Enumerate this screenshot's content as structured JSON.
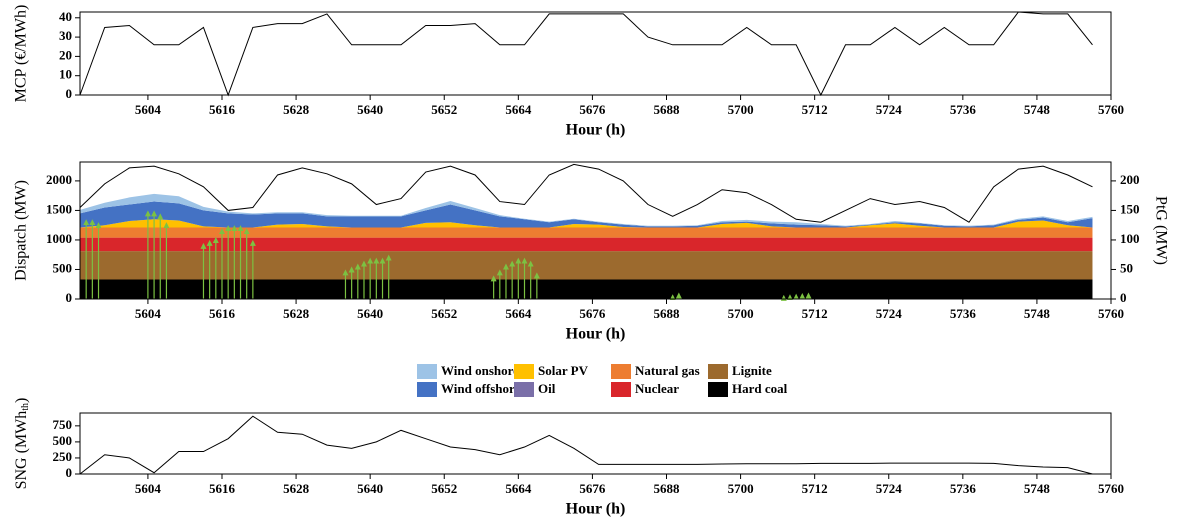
{
  "chart_data": [
    {
      "type": "line",
      "x_label": "Hour (h)",
      "y_label": "MCP (€/MWh)",
      "xlim": [
        5593,
        5760
      ],
      "xticks": [
        5604,
        5616,
        5628,
        5640,
        5652,
        5664,
        5676,
        5688,
        5700,
        5712,
        5724,
        5736,
        5748,
        5760
      ],
      "ylim": [
        0,
        43
      ],
      "yticks": [
        0,
        10,
        20,
        30,
        40
      ],
      "x": [
        5593,
        5597,
        5601,
        5605,
        5609,
        5613,
        5617,
        5621,
        5625,
        5629,
        5633,
        5637,
        5641,
        5645,
        5649,
        5653,
        5657,
        5661,
        5665,
        5669,
        5673,
        5677,
        5681,
        5685,
        5689,
        5693,
        5697,
        5701,
        5705,
        5709,
        5713,
        5717,
        5721,
        5725,
        5729,
        5733,
        5737,
        5741,
        5745,
        5749,
        5753,
        5757
      ],
      "series": [
        {
          "color": "#000000",
          "values": [
            0,
            35,
            36,
            26,
            26,
            35,
            0,
            35,
            37,
            37,
            42,
            26,
            26,
            26,
            36,
            36,
            37,
            26,
            26,
            42,
            42,
            42,
            42,
            30,
            26,
            26,
            26,
            35,
            26,
            26,
            0,
            26,
            26,
            35,
            26,
            35,
            26,
            26,
            43,
            42,
            42,
            26
          ]
        }
      ]
    },
    {
      "type": "area",
      "x_label": "Hour (h)",
      "y_label": "Dispatch (MW)",
      "y2_label": "PtG (MW)",
      "xlim": [
        5593,
        5760
      ],
      "xticks": [
        5604,
        5616,
        5628,
        5640,
        5652,
        5664,
        5676,
        5688,
        5700,
        5712,
        5724,
        5736,
        5748,
        5760
      ],
      "ylim": [
        0,
        2320
      ],
      "yticks": [
        0,
        500,
        1000,
        1500,
        2000
      ],
      "y2lim": [
        0,
        232
      ],
      "y2ticks": [
        0,
        50,
        100,
        150,
        200
      ],
      "x": [
        5593,
        5597,
        5601,
        5605,
        5609,
        5613,
        5617,
        5621,
        5625,
        5629,
        5633,
        5637,
        5641,
        5645,
        5649,
        5653,
        5657,
        5661,
        5665,
        5669,
        5673,
        5677,
        5681,
        5685,
        5689,
        5693,
        5697,
        5701,
        5705,
        5709,
        5713,
        5717,
        5721,
        5725,
        5729,
        5733,
        5737,
        5741,
        5745,
        5749,
        5753,
        5757
      ],
      "series": [
        {
          "name": "Wind onshore",
          "color": "#9dc3e6",
          "values": [
            60,
            80,
            120,
            130,
            120,
            60,
            30,
            20,
            20,
            20,
            20,
            10,
            10,
            10,
            40,
            60,
            40,
            20,
            10,
            10,
            10,
            10,
            10,
            10,
            10,
            10,
            20,
            30,
            30,
            40,
            20,
            10,
            10,
            20,
            10,
            10,
            10,
            10,
            20,
            20,
            20,
            20
          ]
        },
        {
          "name": "Wind offshore",
          "color": "#4472c4",
          "values": [
            240,
            300,
            280,
            300,
            290,
            270,
            240,
            220,
            190,
            180,
            170,
            190,
            190,
            190,
            210,
            300,
            250,
            190,
            140,
            90,
            80,
            40,
            40,
            20,
            20,
            30,
            30,
            20,
            50,
            50,
            40,
            20,
            10,
            20,
            40,
            30,
            20,
            40,
            30,
            50,
            50,
            160
          ]
        },
        {
          "name": "Solar PV",
          "color": "#ffc000",
          "values": [
            0,
            40,
            110,
            140,
            120,
            20,
            0,
            0,
            50,
            60,
            20,
            0,
            0,
            0,
            80,
            90,
            40,
            0,
            0,
            0,
            60,
            50,
            10,
            0,
            0,
            0,
            60,
            80,
            20,
            0,
            0,
            0,
            40,
            70,
            30,
            0,
            0,
            0,
            100,
            120,
            40,
            0
          ]
        },
        {
          "name": "Oil",
          "color": "#7a6fa8",
          "values": [
            0,
            0,
            0,
            0,
            0,
            0,
            0,
            0,
            0,
            0,
            0,
            0,
            0,
            0,
            0,
            0,
            0,
            0,
            0,
            0,
            0,
            0,
            0,
            0,
            0,
            0,
            0,
            0,
            0,
            0,
            0,
            0,
            0,
            0,
            0,
            0,
            0,
            0,
            0,
            0,
            0,
            0
          ]
        },
        {
          "name": "Natural gas",
          "color": "#ed7d31",
          "values": [
            170,
            170,
            170,
            170,
            170,
            170,
            170,
            170,
            170,
            170,
            170,
            170,
            170,
            170,
            170,
            170,
            170,
            170,
            170,
            170,
            170,
            170,
            170,
            170,
            170,
            170,
            170,
            170,
            170,
            170,
            170,
            170,
            170,
            170,
            170,
            170,
            170,
            170,
            170,
            170,
            170,
            170
          ]
        },
        {
          "name": "Nuclear",
          "color": "#d9262b",
          "values": [
            230,
            230,
            230,
            230,
            230,
            230,
            230,
            230,
            230,
            230,
            230,
            230,
            230,
            230,
            230,
            230,
            230,
            230,
            230,
            230,
            230,
            230,
            230,
            230,
            230,
            230,
            230,
            230,
            230,
            230,
            230,
            230,
            230,
            230,
            230,
            230,
            230,
            230,
            230,
            230,
            230,
            230
          ]
        },
        {
          "name": "Lignite",
          "color": "#9c6a2e",
          "values": [
            480,
            480,
            480,
            480,
            480,
            480,
            480,
            480,
            480,
            480,
            480,
            480,
            480,
            480,
            480,
            480,
            480,
            480,
            480,
            480,
            480,
            480,
            480,
            480,
            480,
            480,
            480,
            480,
            480,
            480,
            480,
            480,
            480,
            480,
            480,
            480,
            480,
            480,
            480,
            480,
            480,
            480
          ]
        },
        {
          "name": "Hard coal",
          "color": "#000000",
          "values": [
            330,
            330,
            330,
            330,
            330,
            330,
            330,
            330,
            330,
            330,
            330,
            330,
            330,
            330,
            330,
            330,
            330,
            330,
            330,
            330,
            330,
            330,
            330,
            330,
            330,
            330,
            330,
            330,
            330,
            330,
            330,
            330,
            330,
            330,
            330,
            330,
            330,
            330,
            330,
            330,
            330,
            330
          ]
        }
      ],
      "line": {
        "color": "#000000",
        "axis": "y2",
        "values": [
          155,
          195,
          222,
          225,
          212,
          190,
          150,
          155,
          210,
          222,
          212,
          195,
          160,
          170,
          215,
          225,
          210,
          165,
          160,
          210,
          228,
          220,
          200,
          160,
          140,
          160,
          185,
          180,
          160,
          135,
          130,
          150,
          170,
          160,
          165,
          155,
          130,
          190,
          220,
          225,
          210,
          190
        ]
      },
      "arrows": {
        "color": "#7cc242",
        "x": [
          5594,
          5595,
          5596,
          5604,
          5605,
          5606,
          5607,
          5613,
          5614,
          5615,
          5616,
          5617,
          5618,
          5619,
          5620,
          5621,
          5636,
          5637,
          5638,
          5639,
          5640,
          5641,
          5642,
          5643,
          5660,
          5661,
          5662,
          5663,
          5664,
          5665,
          5666,
          5667,
          5689,
          5690,
          5707,
          5708,
          5709,
          5710,
          5711
        ],
        "values": [
          1300,
          1300,
          1250,
          1450,
          1450,
          1400,
          1250,
          900,
          950,
          1000,
          1150,
          1200,
          1200,
          1200,
          1150,
          950,
          450,
          500,
          550,
          600,
          650,
          650,
          650,
          700,
          350,
          450,
          550,
          600,
          650,
          650,
          600,
          400,
          30,
          60,
          20,
          30,
          40,
          50,
          60
        ]
      }
    },
    {
      "type": "line",
      "x_label": "Hour (h)",
      "y_label": {
        "text": "SNG (MWh",
        "sub": "th",
        "end": ")"
      },
      "xlim": [
        5593,
        5760
      ],
      "xticks": [
        5604,
        5616,
        5628,
        5640,
        5652,
        5664,
        5676,
        5688,
        5700,
        5712,
        5724,
        5736,
        5748,
        5760
      ],
      "ylim": [
        0,
        950
      ],
      "yticks": [
        0,
        250,
        500,
        750
      ],
      "x": [
        5593,
        5597,
        5601,
        5605,
        5609,
        5613,
        5617,
        5621,
        5625,
        5629,
        5633,
        5637,
        5641,
        5645,
        5649,
        5653,
        5657,
        5661,
        5665,
        5669,
        5673,
        5677,
        5681,
        5685,
        5689,
        5693,
        5697,
        5701,
        5705,
        5709,
        5713,
        5717,
        5721,
        5725,
        5729,
        5733,
        5737,
        5741,
        5745,
        5749,
        5753,
        5757
      ],
      "series": [
        {
          "color": "#000000",
          "values": [
            0,
            300,
            250,
            20,
            350,
            350,
            550,
            900,
            650,
            620,
            450,
            400,
            500,
            680,
            550,
            420,
            380,
            300,
            420,
            600,
            400,
            150,
            150,
            150,
            150,
            150,
            155,
            160,
            160,
            160,
            165,
            165,
            165,
            170,
            170,
            170,
            170,
            165,
            130,
            110,
            100,
            0
          ]
        }
      ]
    }
  ]
}
